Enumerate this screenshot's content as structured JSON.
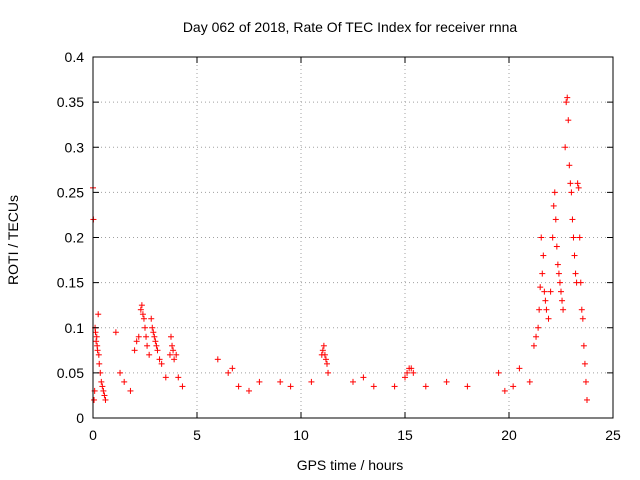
{
  "chart_data": {
    "type": "scatter",
    "title": "Day 062 of 2018, Rate Of TEC Index for receiver rnna",
    "xlabel": "GPS time / hours",
    "ylabel": "ROTI / TECUs",
    "xlim": [
      0,
      25
    ],
    "ylim": [
      0,
      0.4
    ],
    "xticks": [
      0,
      5,
      10,
      15,
      20,
      25
    ],
    "yticks": [
      0,
      0.05,
      0.1,
      0.15,
      0.2,
      0.25,
      0.3,
      0.35,
      0.4
    ],
    "xtick_labels": [
      "0",
      "5",
      "10",
      "15",
      "20",
      "25"
    ],
    "ytick_labels": [
      "0",
      "0.05",
      "0.1",
      "0.15",
      "0.2",
      "0.25",
      "0.3",
      "0.35",
      "0.4"
    ],
    "grid": true,
    "marker": "+",
    "color": "#ff0000",
    "series": [
      {
        "points": [
          [
            0.0,
            0.255
          ],
          [
            0.02,
            0.22
          ],
          [
            0.05,
            0.02
          ],
          [
            0.08,
            0.03
          ],
          [
            0.1,
            0.1
          ],
          [
            0.12,
            0.095
          ],
          [
            0.15,
            0.085
          ],
          [
            0.18,
            0.09
          ],
          [
            0.2,
            0.08
          ],
          [
            0.22,
            0.075
          ],
          [
            0.25,
            0.115
          ],
          [
            0.28,
            0.07
          ],
          [
            0.3,
            0.06
          ],
          [
            0.35,
            0.05
          ],
          [
            0.4,
            0.04
          ],
          [
            0.45,
            0.035
          ],
          [
            0.5,
            0.03
          ],
          [
            0.55,
            0.025
          ],
          [
            0.6,
            0.02
          ],
          [
            1.1,
            0.095
          ],
          [
            1.3,
            0.05
          ],
          [
            1.5,
            0.04
          ],
          [
            1.8,
            0.03
          ],
          [
            2.0,
            0.075
          ],
          [
            2.1,
            0.085
          ],
          [
            2.2,
            0.09
          ],
          [
            2.3,
            0.12
          ],
          [
            2.35,
            0.125
          ],
          [
            2.4,
            0.115
          ],
          [
            2.45,
            0.11
          ],
          [
            2.5,
            0.1
          ],
          [
            2.55,
            0.09
          ],
          [
            2.6,
            0.08
          ],
          [
            2.7,
            0.07
          ],
          [
            2.8,
            0.11
          ],
          [
            2.85,
            0.1
          ],
          [
            2.9,
            0.095
          ],
          [
            2.95,
            0.09
          ],
          [
            3.0,
            0.085
          ],
          [
            3.05,
            0.08
          ],
          [
            3.1,
            0.075
          ],
          [
            3.2,
            0.065
          ],
          [
            3.3,
            0.06
          ],
          [
            3.5,
            0.045
          ],
          [
            3.7,
            0.07
          ],
          [
            3.75,
            0.09
          ],
          [
            3.8,
            0.08
          ],
          [
            3.85,
            0.075
          ],
          [
            3.9,
            0.065
          ],
          [
            4.0,
            0.07
          ],
          [
            4.1,
            0.045
          ],
          [
            4.3,
            0.035
          ],
          [
            6.0,
            0.065
          ],
          [
            6.5,
            0.05
          ],
          [
            6.7,
            0.055
          ],
          [
            7.0,
            0.035
          ],
          [
            7.5,
            0.03
          ],
          [
            8.0,
            0.04
          ],
          [
            9.0,
            0.04
          ],
          [
            9.5,
            0.035
          ],
          [
            10.5,
            0.04
          ],
          [
            11.0,
            0.07
          ],
          [
            11.05,
            0.075
          ],
          [
            11.1,
            0.08
          ],
          [
            11.15,
            0.07
          ],
          [
            11.2,
            0.065
          ],
          [
            11.25,
            0.06
          ],
          [
            11.3,
            0.05
          ],
          [
            12.5,
            0.04
          ],
          [
            13.0,
            0.045
          ],
          [
            13.5,
            0.035
          ],
          [
            14.5,
            0.035
          ],
          [
            15.0,
            0.045
          ],
          [
            15.1,
            0.05
          ],
          [
            15.2,
            0.055
          ],
          [
            15.3,
            0.055
          ],
          [
            15.4,
            0.05
          ],
          [
            16.0,
            0.035
          ],
          [
            17.0,
            0.04
          ],
          [
            18.0,
            0.035
          ],
          [
            19.5,
            0.05
          ],
          [
            19.8,
            0.03
          ],
          [
            20.2,
            0.035
          ],
          [
            20.5,
            0.055
          ],
          [
            21.0,
            0.04
          ],
          [
            21.2,
            0.08
          ],
          [
            21.3,
            0.09
          ],
          [
            21.4,
            0.1
          ],
          [
            21.45,
            0.12
          ],
          [
            21.5,
            0.145
          ],
          [
            21.55,
            0.2
          ],
          [
            21.6,
            0.16
          ],
          [
            21.65,
            0.18
          ],
          [
            21.7,
            0.14
          ],
          [
            21.75,
            0.13
          ],
          [
            21.8,
            0.12
          ],
          [
            21.9,
            0.11
          ],
          [
            22.0,
            0.14
          ],
          [
            22.1,
            0.2
          ],
          [
            22.15,
            0.235
          ],
          [
            22.2,
            0.25
          ],
          [
            22.25,
            0.22
          ],
          [
            22.3,
            0.19
          ],
          [
            22.35,
            0.17
          ],
          [
            22.4,
            0.16
          ],
          [
            22.45,
            0.15
          ],
          [
            22.5,
            0.14
          ],
          [
            22.55,
            0.13
          ],
          [
            22.6,
            0.12
          ],
          [
            22.7,
            0.3
          ],
          [
            22.75,
            0.35
          ],
          [
            22.8,
            0.355
          ],
          [
            22.85,
            0.33
          ],
          [
            22.9,
            0.28
          ],
          [
            22.95,
            0.26
          ],
          [
            23.0,
            0.25
          ],
          [
            23.05,
            0.22
          ],
          [
            23.1,
            0.2
          ],
          [
            23.15,
            0.18
          ],
          [
            23.2,
            0.16
          ],
          [
            23.25,
            0.15
          ],
          [
            23.3,
            0.26
          ],
          [
            23.35,
            0.255
          ],
          [
            23.4,
            0.2
          ],
          [
            23.45,
            0.15
          ],
          [
            23.5,
            0.12
          ],
          [
            23.55,
            0.11
          ],
          [
            23.6,
            0.08
          ],
          [
            23.65,
            0.06
          ],
          [
            23.7,
            0.04
          ],
          [
            23.75,
            0.02
          ]
        ]
      }
    ]
  }
}
